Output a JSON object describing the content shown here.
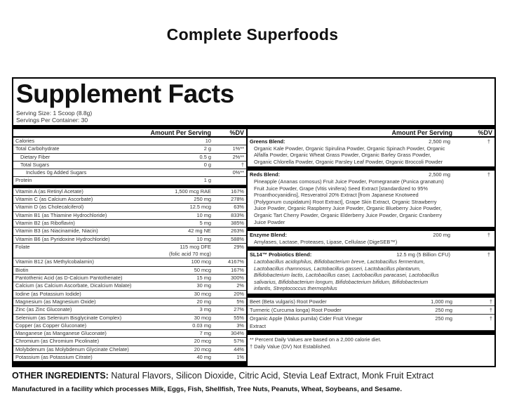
{
  "header_title": "Complete Superfoods",
  "panel_title": "Supplement Facts",
  "serving_size": "Serving Size: 1 Scoop (8.8g)",
  "servings_per_container": "Servings Per Container: 30",
  "col_amount": "Amount Per Serving",
  "col_dv": "%DV",
  "left_rows": [
    {
      "name": "Calories",
      "amount": "10",
      "dv": ""
    },
    {
      "name": "Total Carbohydrate",
      "amount": "2 g",
      "dv": "1%**"
    },
    {
      "name": "Dietary Fiber",
      "amount": "0.5 g",
      "dv": "2%**"
    },
    {
      "name": "Total Sugars",
      "amount": "0 g",
      "dv": "†"
    },
    {
      "name": "Includes 0g Added Sugars",
      "amount": "",
      "dv": "0%**"
    },
    {
      "name": "Protein",
      "amount": "1 g",
      "dv": ""
    },
    {
      "name": "Vitamin A (as Retinyl Acetate)",
      "amount": "1,500 mcg RAE",
      "dv": "167%"
    },
    {
      "name": "Vitamin C (as Calcium Ascorbate)",
      "amount": "250 mg",
      "dv": "278%"
    },
    {
      "name": "Vitamin D (as Cholecalciferol)",
      "amount": "12.5 mcg",
      "dv": "63%"
    },
    {
      "name": "Vitamin B1 (as Thiamine Hydrochloride)",
      "amount": "10 mg",
      "dv": "833%"
    },
    {
      "name": "Vitamin B2 (as Riboflavin)",
      "amount": "5 mg",
      "dv": "385%"
    },
    {
      "name": "Vitamin B3 (as Niacinamide, Niacin)",
      "amount": "42 mg NE",
      "dv": "263%"
    },
    {
      "name": "Vitamin B6 (as Pyridoxine Hydrochloride)",
      "amount": "10 mg",
      "dv": "588%"
    },
    {
      "name": "Folate",
      "amount": "115 mcg DFE",
      "amount2": "(folic acid 70 mcg)",
      "dv": "29%"
    },
    {
      "name": "Vitamin B12 (as Methylcobalamin)",
      "amount": "100 mcg",
      "dv": "4167%"
    },
    {
      "name": "Biotin",
      "amount": "50 mcg",
      "dv": "167%"
    },
    {
      "name": "Pantothenic Acid (as D-Calcium Pantothenate)",
      "amount": "15 mg",
      "dv": "300%"
    },
    {
      "name": "Calcium (as Calcium Ascorbate, Dicalcium Malate)",
      "amount": "30 mg",
      "dv": "2%"
    },
    {
      "name": "Iodine (as Potassium Iodide)",
      "amount": "30 mcg",
      "dv": "20%"
    },
    {
      "name": "Magnesium (as Magnesium Oxide)",
      "amount": "20 mg",
      "dv": "5%"
    },
    {
      "name": "Zinc (as Zinc Gluconate)",
      "amount": "3 mg",
      "dv": "27%"
    },
    {
      "name": "Selenium (as Selenium Bisglycinate Complex)",
      "amount": "30 mcg",
      "dv": "55%"
    },
    {
      "name": "Copper (as Copper Gluconate)",
      "amount": "0.03 mg",
      "dv": "3%"
    },
    {
      "name": "Manganese (as Manganese Gluconate)",
      "amount": "7 mg",
      "dv": "304%"
    },
    {
      "name": "Chromium (as Chromium Picolinate)",
      "amount": "20 mcg",
      "dv": "57%"
    },
    {
      "name": "Molybdenum (as Molybdenum Glycinate Chelate)",
      "amount": "20 mcg",
      "dv": "44%"
    },
    {
      "name": "Potassium (as Potassium Citrate)",
      "amount": "40 mg",
      "dv": "1%"
    }
  ],
  "blends": [
    {
      "name": "Greens Blend:",
      "amount": "2,500 mg",
      "dv": "†",
      "desc": "Organic Kale Powder, Organic Spirulina Powder, Organic Spinach Powder, Organic Alfalfa Powder, Organic Wheat Grass Powder, Organic Barley Grass Powder, Organic Chlorella Powder, Organic Parsley Leaf Powder, Organic Broccoli Powder"
    },
    {
      "name": "Reds Blend:",
      "amount": "2,500 mg",
      "dv": "†",
      "desc": "Pineapple (Ananas comosus) Fruit Juice Powder, Pomegranate (Punica granatum) Fruit Juice Powder, Grape (Vitis vinifera) Seed Extract [standardized to 95% Proanthocyanidins], Resveratrol 20% Extract [from Japanese Knotweed (Polygonum cuspidatum) Root Extract], Grape Skin Extract, Organic Strawberry Juice Powder, Organic Raspberry Juice Powder, Organic Blueberry Juice Powder, Organic Tart Cherry Powder, Organic Elderberry Juice Powder, Organic Cranberry Juice Powder"
    },
    {
      "name": "Enzyme Blend:",
      "amount": "200 mg",
      "dv": "†",
      "desc": "Amylases, Lactase, Proteases, Lipase, Cellulase (DigeSEB™)"
    },
    {
      "name": "SL14™ Probiotics Blend:",
      "amount": "12.5 mg (5 Billion CFU)",
      "dv": "†",
      "desc": "Lactobacillus acidophilus, Bifidobacterium breve, Lactobacillus fermentum, Lactobacillus rhamnosus, Lactobacillus gasseri, Lactobacillus plantarum, Bifidobacterium lactis, Lactobacillus casei, Lactobacillus paracasei, Lactobacillus salivarius, Bifidobacterium longum, Bifidobacterium bifidum, Bifidobacterium infantis, Streptococcus thermophilus"
    }
  ],
  "right_rows": [
    {
      "name": "Beet (Beta vulgaris) Root Powder",
      "amount": "1,000 mg",
      "dv": "†"
    },
    {
      "name": "Turmeric (Curcuma longa) Root Powder",
      "amount": "250 mg",
      "dv": "†"
    },
    {
      "name": "Organic Apple (Malus pumila) Cider Fruit Vinegar Extract",
      "amount": "250 mg",
      "dv": "†"
    }
  ],
  "footnotes": [
    "** Percent Daily Values are based on a 2,000 calorie diet.",
    "† Daily Value (DV) Not Established."
  ],
  "other_label": "OTHER INGREDIENTS:",
  "other_text": " Natural Flavors, Silicon Dioxide, Citric Acid, Stevia Leaf Extract, Monk Fruit Extract",
  "manufactured": "Manufactured in a facility which processes Milk, Eggs, Fish, Shellfish, Tree Nuts, Peanuts, Wheat, Soybeans, and Sesame."
}
